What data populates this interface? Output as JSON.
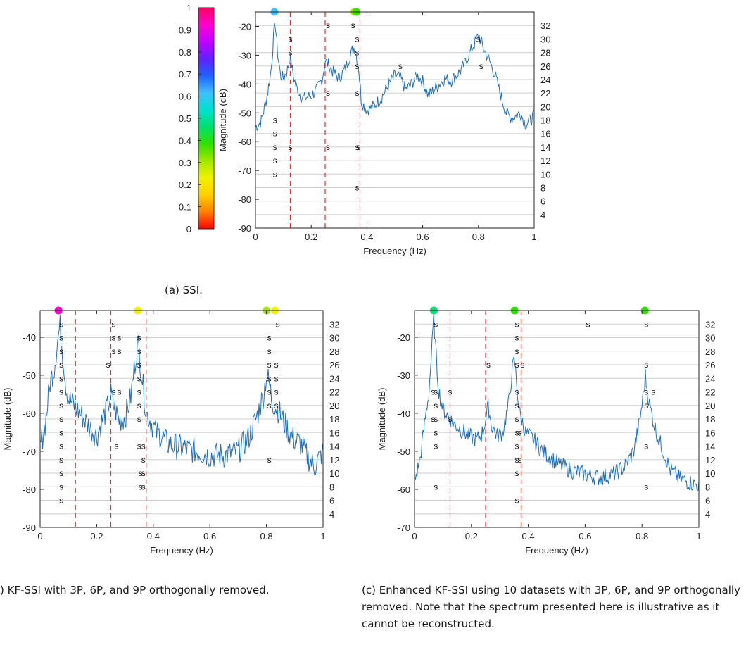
{
  "figure": {
    "caption_a": "(a) SSI.",
    "caption_b": ") KF-SSI with 3P, 6P, and 9P orthogonally removed.",
    "caption_c": "(c) Enhanced KF-SSI using 10 datasets with 3P, 6P, and 9P orthogonally removed. Note that the spectrum presented here is illustrative as it cannot be reconstructed.",
    "stab_symbol": "s",
    "colormap": [
      "#ff0000",
      "#ff8000",
      "#ffd000",
      "#f2f200",
      "#a0e800",
      "#30e000",
      "#00e070",
      "#00e0d0",
      "#40c0ff",
      "#2060ff",
      "#6020ff",
      "#c000ff",
      "#ff00d0",
      "#ff0060"
    ],
    "line_color": "#1f6fb5",
    "harmonic_color": "#e03030"
  },
  "colorbar": {
    "ticks": [
      "0",
      "0.1",
      "0.2",
      "0.3",
      "0.4",
      "0.5",
      "0.6",
      "0.7",
      "0.8",
      "0.9",
      "1"
    ],
    "range": [
      0,
      1
    ]
  },
  "chart_data": [
    {
      "id": "a",
      "type": "line",
      "xlabel": "Frequency (Hz)",
      "ylabel": "Magnitude (dB)",
      "xlim": [
        0,
        1
      ],
      "ylim": [
        -90,
        -15
      ],
      "xticks": [
        0,
        0.2,
        0.4,
        0.6,
        0.8,
        1
      ],
      "xtick_labels": [
        "0",
        "0.2",
        "0.4",
        "0.6",
        "0.8",
        "1"
      ],
      "yticks": [
        -20,
        -30,
        -40,
        -50,
        -60,
        -70,
        -80,
        -90
      ],
      "ytick_labels": [
        "-20",
        "-30",
        "-40",
        "-50",
        "-60",
        "-70",
        "-80",
        "-90"
      ],
      "order_ticks": [
        "32",
        "30",
        "28",
        "26",
        "24",
        "22",
        "20",
        "18",
        "16",
        "14",
        "12",
        "10",
        "8",
        "6",
        "4"
      ],
      "order_range": [
        2,
        34
      ],
      "harmonics": [
        0.125,
        0.25,
        0.375
      ],
      "spectrum": [
        [
          0,
          -55
        ],
        [
          0.02,
          -53
        ],
        [
          0.04,
          -45
        ],
        [
          0.055,
          -36
        ],
        [
          0.065,
          -24
        ],
        [
          0.07,
          -18
        ],
        [
          0.08,
          -30
        ],
        [
          0.09,
          -37
        ],
        [
          0.1,
          -38
        ],
        [
          0.115,
          -35
        ],
        [
          0.125,
          -30
        ],
        [
          0.135,
          -37
        ],
        [
          0.15,
          -42
        ],
        [
          0.17,
          -45
        ],
        [
          0.2,
          -44
        ],
        [
          0.22,
          -42
        ],
        [
          0.24,
          -38
        ],
        [
          0.25,
          -32
        ],
        [
          0.26,
          -33
        ],
        [
          0.28,
          -36
        ],
        [
          0.3,
          -38
        ],
        [
          0.32,
          -35
        ],
        [
          0.34,
          -30
        ],
        [
          0.355,
          -27
        ],
        [
          0.37,
          -34
        ],
        [
          0.38,
          -46
        ],
        [
          0.4,
          -49
        ],
        [
          0.42,
          -48
        ],
        [
          0.45,
          -45
        ],
        [
          0.48,
          -40
        ],
        [
          0.5,
          -37
        ],
        [
          0.52,
          -38
        ],
        [
          0.54,
          -42
        ],
        [
          0.56,
          -40
        ],
        [
          0.58,
          -37
        ],
        [
          0.6,
          -39
        ],
        [
          0.62,
          -44
        ],
        [
          0.65,
          -41
        ],
        [
          0.68,
          -38
        ],
        [
          0.7,
          -39
        ],
        [
          0.72,
          -37
        ],
        [
          0.74,
          -35
        ],
        [
          0.76,
          -31
        ],
        [
          0.78,
          -27
        ],
        [
          0.8,
          -23
        ],
        [
          0.82,
          -28
        ],
        [
          0.84,
          -32
        ],
        [
          0.86,
          -37
        ],
        [
          0.88,
          -44
        ],
        [
          0.9,
          -50
        ],
        [
          0.92,
          -52
        ],
        [
          0.95,
          -50
        ],
        [
          0.97,
          -54
        ],
        [
          1.0,
          -51
        ]
      ],
      "stable": [
        [
          0.07,
          18
        ],
        [
          0.07,
          16
        ],
        [
          0.07,
          14
        ],
        [
          0.07,
          12
        ],
        [
          0.07,
          10
        ],
        [
          0.125,
          30
        ],
        [
          0.125,
          28
        ],
        [
          0.125,
          14
        ],
        [
          0.26,
          32
        ],
        [
          0.26,
          22
        ],
        [
          0.26,
          14
        ],
        [
          0.35,
          32
        ],
        [
          0.365,
          30
        ],
        [
          0.365,
          28
        ],
        [
          0.365,
          26
        ],
        [
          0.365,
          22
        ],
        [
          0.365,
          14
        ],
        [
          0.37,
          14
        ],
        [
          0.365,
          8
        ],
        [
          0.52,
          26
        ],
        [
          0.8,
          30
        ],
        [
          0.81,
          26
        ]
      ],
      "modes": [
        {
          "f": 0.068,
          "damping": 0.6
        },
        {
          "f": 0.355,
          "damping": 0.3
        },
        {
          "f": 0.362,
          "damping": 0.35
        }
      ]
    },
    {
      "id": "b",
      "type": "line",
      "xlabel": "Frequency (Hz)",
      "ylabel": "Magnitude (dB)",
      "xlim": [
        0,
        1
      ],
      "ylim": [
        -90,
        -33
      ],
      "xticks": [
        0,
        0.2,
        0.4,
        0.6,
        0.8,
        1
      ],
      "xtick_labels": [
        "0",
        "0.2",
        "0.4",
        "0.6",
        "0.8",
        "1"
      ],
      "yticks": [
        -40,
        -50,
        -60,
        -70,
        -80,
        -90
      ],
      "ytick_labels": [
        "-40",
        "-50",
        "-60",
        "-70",
        "-80",
        "-90"
      ],
      "order_ticks": [
        "32",
        "30",
        "28",
        "26",
        "24",
        "22",
        "20",
        "18",
        "16",
        "14",
        "12",
        "10",
        "8",
        "6",
        "4"
      ],
      "order_range": [
        2,
        34
      ],
      "harmonics": [
        0.125,
        0.25,
        0.375
      ],
      "spectrum": [
        [
          0,
          -69
        ],
        [
          0.02,
          -62
        ],
        [
          0.035,
          -52
        ],
        [
          0.05,
          -48
        ],
        [
          0.06,
          -42
        ],
        [
          0.07,
          -37
        ],
        [
          0.08,
          -44
        ],
        [
          0.09,
          -52
        ],
        [
          0.1,
          -56
        ],
        [
          0.12,
          -58
        ],
        [
          0.14,
          -60
        ],
        [
          0.16,
          -62
        ],
        [
          0.18,
          -64
        ],
        [
          0.2,
          -66
        ],
        [
          0.22,
          -62
        ],
        [
          0.24,
          -58
        ],
        [
          0.25,
          -55
        ],
        [
          0.26,
          -58
        ],
        [
          0.28,
          -62
        ],
        [
          0.3,
          -61
        ],
        [
          0.32,
          -56
        ],
        [
          0.34,
          -44
        ],
        [
          0.345,
          -41
        ],
        [
          0.36,
          -50
        ],
        [
          0.375,
          -60
        ],
        [
          0.39,
          -62
        ],
        [
          0.41,
          -65
        ],
        [
          0.43,
          -66
        ],
        [
          0.45,
          -68
        ],
        [
          0.5,
          -69
        ],
        [
          0.55,
          -70
        ],
        [
          0.6,
          -71
        ],
        [
          0.65,
          -71
        ],
        [
          0.7,
          -70
        ],
        [
          0.74,
          -66
        ],
        [
          0.77,
          -60
        ],
        [
          0.79,
          -55
        ],
        [
          0.8,
          -50
        ],
        [
          0.81,
          -52
        ],
        [
          0.82,
          -57
        ],
        [
          0.84,
          -59
        ],
        [
          0.86,
          -62
        ],
        [
          0.88,
          -65
        ],
        [
          0.9,
          -67
        ],
        [
          0.92,
          -68
        ],
        [
          0.95,
          -72
        ],
        [
          0.97,
          -74
        ],
        [
          1.0,
          -70
        ]
      ],
      "stable": [
        [
          0.075,
          32
        ],
        [
          0.075,
          30
        ],
        [
          0.075,
          28
        ],
        [
          0.075,
          26
        ],
        [
          0.075,
          24
        ],
        [
          0.075,
          22
        ],
        [
          0.075,
          20
        ],
        [
          0.075,
          18
        ],
        [
          0.075,
          16
        ],
        [
          0.075,
          14
        ],
        [
          0.075,
          12
        ],
        [
          0.075,
          10
        ],
        [
          0.075,
          8
        ],
        [
          0.075,
          6
        ],
        [
          0.24,
          26
        ],
        [
          0.26,
          32
        ],
        [
          0.26,
          30
        ],
        [
          0.28,
          30
        ],
        [
          0.26,
          28
        ],
        [
          0.28,
          28
        ],
        [
          0.26,
          22
        ],
        [
          0.28,
          22
        ],
        [
          0.27,
          14
        ],
        [
          0.35,
          30
        ],
        [
          0.35,
          28
        ],
        [
          0.35,
          26
        ],
        [
          0.35,
          24
        ],
        [
          0.35,
          22
        ],
        [
          0.35,
          20
        ],
        [
          0.35,
          18
        ],
        [
          0.35,
          14
        ],
        [
          0.365,
          14
        ],
        [
          0.365,
          12
        ],
        [
          0.355,
          10
        ],
        [
          0.365,
          10
        ],
        [
          0.355,
          8
        ],
        [
          0.365,
          8
        ],
        [
          0.81,
          30
        ],
        [
          0.81,
          28
        ],
        [
          0.81,
          26
        ],
        [
          0.835,
          26
        ],
        [
          0.81,
          24
        ],
        [
          0.835,
          24
        ],
        [
          0.81,
          22
        ],
        [
          0.835,
          22
        ],
        [
          0.81,
          20
        ],
        [
          0.835,
          20
        ],
        [
          0.81,
          12
        ],
        [
          0.84,
          32
        ]
      ],
      "modes": [
        {
          "f": 0.065,
          "damping": 0.9
        },
        {
          "f": 0.345,
          "damping": 0.2
        },
        {
          "f": 0.8,
          "damping": 0.3
        },
        {
          "f": 0.83,
          "damping": 0.2
        }
      ]
    },
    {
      "id": "c",
      "type": "line",
      "xlabel": "Frequency (Hz)",
      "ylabel": "Magnitude (dB)",
      "xlim": [
        0,
        1
      ],
      "ylim": [
        -70,
        -13
      ],
      "xticks": [
        0,
        0.2,
        0.4,
        0.6,
        0.8,
        1
      ],
      "xtick_labels": [
        "0",
        "0.2",
        "0.4",
        "0.6",
        "0.8",
        "1"
      ],
      "yticks": [
        -20,
        -30,
        -40,
        -50,
        -60,
        -70
      ],
      "ytick_labels": [
        "-20",
        "-30",
        "-40",
        "-50",
        "-60",
        "-70"
      ],
      "order_ticks": [
        "32",
        "30",
        "28",
        "26",
        "24",
        "22",
        "20",
        "18",
        "16",
        "14",
        "12",
        "10",
        "8",
        "6",
        "4"
      ],
      "order_range": [
        2,
        34
      ],
      "harmonics": [
        0.125,
        0.25,
        0.375
      ],
      "spectrum": [
        [
          0,
          -58
        ],
        [
          0.02,
          -52
        ],
        [
          0.04,
          -40
        ],
        [
          0.05,
          -35
        ],
        [
          0.06,
          -24
        ],
        [
          0.068,
          -15
        ],
        [
          0.075,
          -24
        ],
        [
          0.085,
          -34
        ],
        [
          0.1,
          -39
        ],
        [
          0.12,
          -41
        ],
        [
          0.14,
          -43
        ],
        [
          0.16,
          -44
        ],
        [
          0.19,
          -46
        ],
        [
          0.22,
          -47
        ],
        [
          0.24,
          -45
        ],
        [
          0.26,
          -38
        ],
        [
          0.27,
          -43
        ],
        [
          0.29,
          -46
        ],
        [
          0.31,
          -45
        ],
        [
          0.33,
          -38
        ],
        [
          0.345,
          -28
        ],
        [
          0.352,
          -26
        ],
        [
          0.36,
          -33
        ],
        [
          0.37,
          -40
        ],
        [
          0.39,
          -45
        ],
        [
          0.42,
          -47
        ],
        [
          0.45,
          -50
        ],
        [
          0.5,
          -53
        ],
        [
          0.55,
          -55
        ],
        [
          0.6,
          -56
        ],
        [
          0.65,
          -57
        ],
        [
          0.7,
          -56
        ],
        [
          0.74,
          -54
        ],
        [
          0.77,
          -50
        ],
        [
          0.79,
          -43
        ],
        [
          0.805,
          -35
        ],
        [
          0.812,
          -30
        ],
        [
          0.82,
          -35
        ],
        [
          0.83,
          -39
        ],
        [
          0.85,
          -45
        ],
        [
          0.88,
          -51
        ],
        [
          0.9,
          -55
        ],
        [
          0.93,
          -57
        ],
        [
          0.96,
          -58
        ],
        [
          1.0,
          -59
        ]
      ],
      "stable": [
        [
          0.075,
          32
        ],
        [
          0.075,
          22
        ],
        [
          0.065,
          22
        ],
        [
          0.075,
          20
        ],
        [
          0.075,
          18
        ],
        [
          0.065,
          18
        ],
        [
          0.075,
          16
        ],
        [
          0.075,
          14
        ],
        [
          0.075,
          8
        ],
        [
          0.125,
          22
        ],
        [
          0.125,
          18
        ],
        [
          0.26,
          26
        ],
        [
          0.36,
          32
        ],
        [
          0.36,
          30
        ],
        [
          0.36,
          28
        ],
        [
          0.36,
          26
        ],
        [
          0.38,
          26
        ],
        [
          0.36,
          22
        ],
        [
          0.36,
          20
        ],
        [
          0.36,
          18
        ],
        [
          0.36,
          16
        ],
        [
          0.37,
          16
        ],
        [
          0.36,
          14
        ],
        [
          0.36,
          12
        ],
        [
          0.37,
          12
        ],
        [
          0.36,
          10
        ],
        [
          0.36,
          6
        ],
        [
          0.61,
          32
        ],
        [
          0.815,
          32
        ],
        [
          0.815,
          26
        ],
        [
          0.815,
          22
        ],
        [
          0.84,
          22
        ],
        [
          0.815,
          20
        ],
        [
          0.815,
          14
        ],
        [
          0.815,
          8
        ]
      ],
      "modes": [
        {
          "f": 0.068,
          "damping": 0.45
        },
        {
          "f": 0.352,
          "damping": 0.35
        },
        {
          "f": 0.81,
          "damping": 0.4
        }
      ]
    }
  ]
}
